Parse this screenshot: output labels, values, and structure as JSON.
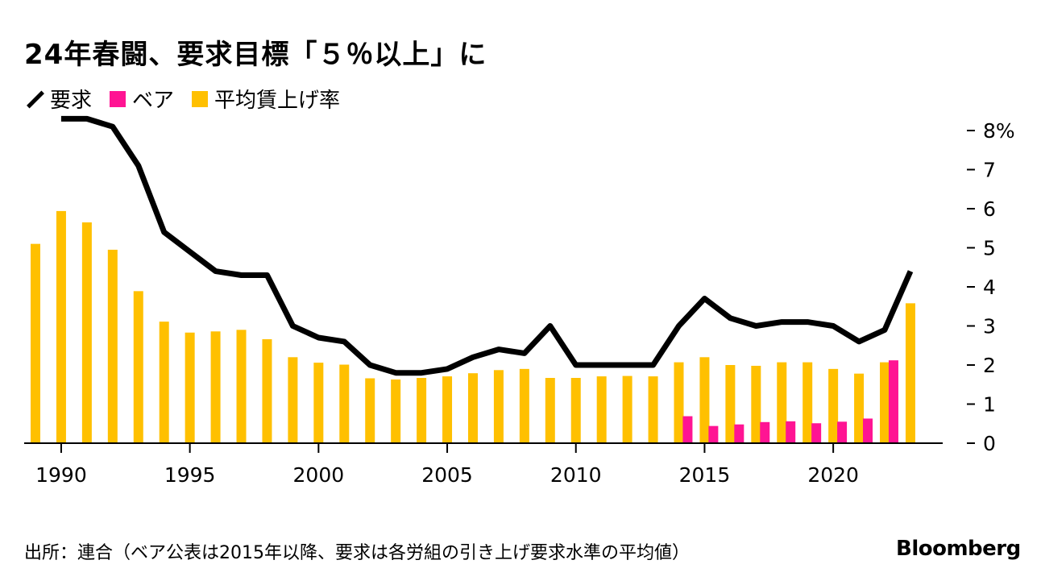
{
  "title": "24年春闘、要求目標「５％以上」に",
  "source": "出所：連合（ベア公表は2015年以降、要求は各労組の引き上げ要求水準の平均値）",
  "brand": "Bloomberg",
  "colors": {
    "line": "#000000",
    "base_up": "#ff1493",
    "avg_raise": "#ffc000",
    "axis": "#000000"
  },
  "chart_data": {
    "type": "bar",
    "title": "24年春闘、要求目標「５％以上」に",
    "xlabel": "",
    "ylabel": "",
    "legend": [
      {
        "key": "demand",
        "label": "要求",
        "kind": "line",
        "color": "#000000"
      },
      {
        "key": "base_up",
        "label": "ベア",
        "kind": "bar",
        "color": "#ff1493"
      },
      {
        "key": "avg_raise",
        "label": "平均賃上げ率",
        "kind": "bar",
        "color": "#ffc000"
      }
    ],
    "legend_position": "top-left",
    "y_axis_side": "right",
    "ylim": [
      0,
      8
    ],
    "y_ticks": [
      0,
      1,
      2,
      3,
      4,
      5,
      6,
      7,
      8
    ],
    "y_tick_labels": [
      "0",
      "1",
      "2",
      "3",
      "4",
      "5",
      "6",
      "7",
      "8%"
    ],
    "x_ticks": [
      1990,
      1995,
      2000,
      2005,
      2010,
      2015,
      2020
    ],
    "x_tick_labels": [
      "1990",
      "1995",
      "2000",
      "2005",
      "2010",
      "2015",
      "2020"
    ],
    "years": [
      1989,
      1990,
      1991,
      1992,
      1993,
      1994,
      1995,
      1996,
      1997,
      1998,
      1999,
      2000,
      2001,
      2002,
      2003,
      2004,
      2005,
      2006,
      2007,
      2008,
      2009,
      2010,
      2011,
      2012,
      2013,
      2014,
      2015,
      2016,
      2017,
      2018,
      2019,
      2020,
      2021,
      2022,
      2023
    ],
    "series": [
      {
        "name": "平均賃上げ率",
        "key": "avg_raise",
        "values": [
          5.1,
          5.94,
          5.65,
          4.95,
          3.89,
          3.11,
          2.83,
          2.86,
          2.9,
          2.66,
          2.2,
          2.06,
          2.01,
          1.66,
          1.63,
          1.67,
          1.71,
          1.79,
          1.87,
          1.9,
          1.67,
          1.67,
          1.71,
          1.72,
          1.71,
          2.07,
          2.2,
          2.0,
          1.98,
          2.07,
          2.07,
          1.9,
          1.78,
          2.07,
          3.58
        ]
      },
      {
        "name": "ベア",
        "key": "base_up",
        "values": [
          null,
          null,
          null,
          null,
          null,
          null,
          null,
          null,
          null,
          null,
          null,
          null,
          null,
          null,
          null,
          null,
          null,
          null,
          null,
          null,
          null,
          null,
          null,
          null,
          null,
          null,
          0.69,
          0.44,
          0.48,
          0.54,
          0.56,
          0.51,
          0.55,
          0.63,
          2.12
        ]
      },
      {
        "name": "要求",
        "key": "demand",
        "values": [
          null,
          8.3,
          8.3,
          8.1,
          7.1,
          5.4,
          4.9,
          4.4,
          4.3,
          4.3,
          3.0,
          2.7,
          2.6,
          2.0,
          1.8,
          1.8,
          1.9,
          2.2,
          2.4,
          2.3,
          3.0,
          2.0,
          2.0,
          2.0,
          2.0,
          3.0,
          3.7,
          3.2,
          3.0,
          3.1,
          3.1,
          3.0,
          2.6,
          2.9,
          4.4
        ]
      }
    ]
  }
}
